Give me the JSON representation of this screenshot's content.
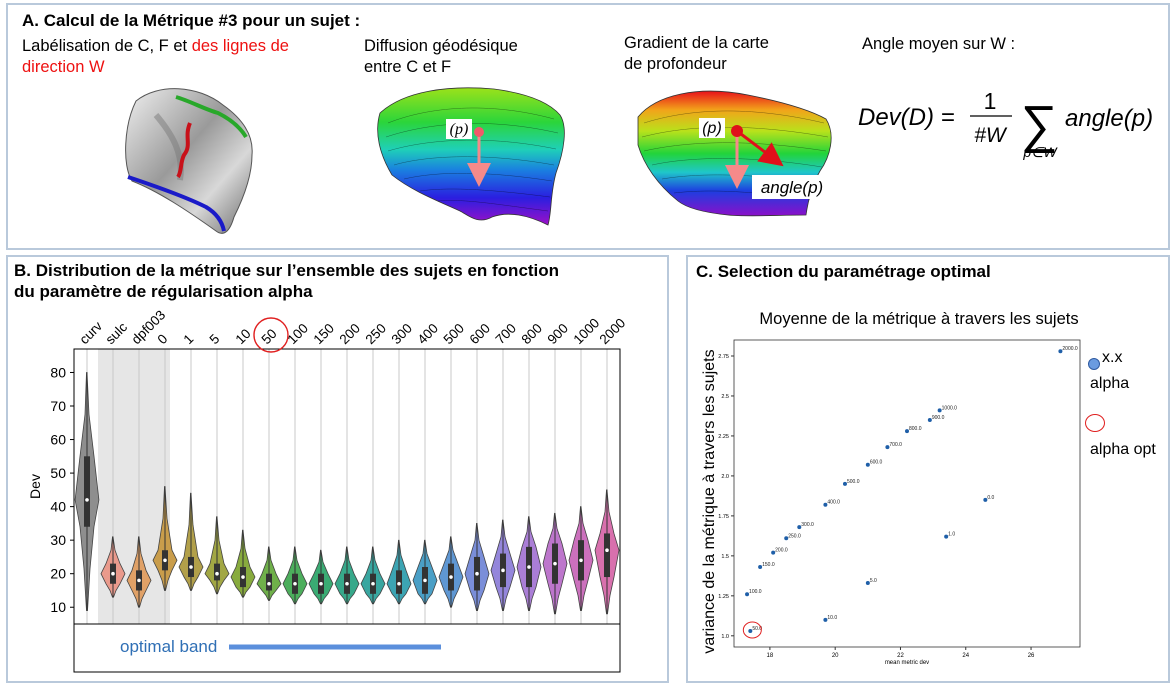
{
  "panelA": {
    "title": "A. Calcul de la Métrique #3 pour un sujet :",
    "step1": {
      "text": "Labélisation de C, F et ",
      "highlight": "des lignes de direction W"
    },
    "step2": {
      "line1": "Diffusion géodésique",
      "line2": "entre C et F"
    },
    "step3": {
      "line1": "Gradient de la carte",
      "line2": "de profondeur"
    },
    "step4": {
      "title": "Angle moyen sur W :"
    },
    "label_p": "(p)",
    "label_angle": "angle(p)",
    "formula": {
      "lhs": "Dev(D) =",
      "num": "1",
      "den": "#W",
      "sum": "∑",
      "sub": "p∈W",
      "term": "angle(p)"
    }
  },
  "panelB": {
    "title_line1": "B. Distribution de la métrique sur l’ensemble des sujets en fonction",
    "title_line2": "du paramètre de régularisation alpha",
    "optimal_label": "optimal band"
  },
  "panelC": {
    "title": "C. Selection du paramétrage optimal",
    "legend_marker": "x.x",
    "legend_alpha": "alpha",
    "legend_opt": "alpha opt"
  },
  "chart_data": [
    {
      "type": "violin",
      "ylabel": "Dev",
      "yticks": [
        10,
        20,
        30,
        40,
        50,
        60,
        70,
        80
      ],
      "ylim": [
        5,
        87
      ],
      "categories": [
        "curv",
        "sulc",
        "dpf003",
        "0",
        "1",
        "5",
        "10",
        "50",
        "100",
        "150",
        "200",
        "250",
        "300",
        "400",
        "500",
        "600",
        "700",
        "800",
        "900",
        "1000",
        "2000"
      ],
      "colors": [
        "#8e8e8e",
        "#e99a8c",
        "#e0a167",
        "#c99d4b",
        "#b2a04a",
        "#a2a744",
        "#88ab3e",
        "#6fb04a",
        "#4cae5c",
        "#3aab73",
        "#37a88a",
        "#39a6a0",
        "#3ca4b3",
        "#4a9fc6",
        "#5f97d3",
        "#7a8ed9",
        "#9486db",
        "#aa7ed6",
        "#bd76cc",
        "#cc70bd",
        "#d870ad"
      ],
      "min": [
        9,
        13,
        10,
        15,
        15,
        14,
        13,
        12,
        11,
        11,
        11,
        11,
        11,
        11,
        10,
        9,
        9,
        9,
        8,
        9,
        8
      ],
      "q1": [
        34,
        17,
        15,
        21,
        19,
        18,
        16,
        15,
        14,
        14,
        14,
        14,
        14,
        14,
        15,
        15,
        16,
        16,
        17,
        18,
        19
      ],
      "median": [
        42,
        20,
        18,
        24,
        22,
        20,
        19,
        17,
        17,
        17,
        17,
        17,
        17,
        18,
        19,
        20,
        21,
        22,
        23,
        24,
        27
      ],
      "q3": [
        55,
        23,
        21,
        27,
        25,
        23,
        22,
        20,
        20,
        20,
        20,
        20,
        21,
        22,
        23,
        25,
        26,
        28,
        29,
        30,
        32
      ],
      "max": [
        80,
        31,
        31,
        46,
        44,
        37,
        33,
        28,
        28,
        27,
        28,
        28,
        30,
        30,
        31,
        35,
        36,
        37,
        38,
        40,
        45
      ],
      "highlight_category": "50",
      "optimal_band": [
        "50",
        "500"
      ]
    },
    {
      "type": "scatter",
      "title": "Moyenne de la métrique à travers les sujets",
      "xlabel": "mean metric dev",
      "ylabel": "variance de la métrique à travers les sujets",
      "xticks": [
        18,
        20,
        22,
        24,
        26
      ],
      "yticks": [
        1.0,
        1.25,
        1.5,
        1.75,
        2.0,
        2.25,
        2.5,
        2.75
      ],
      "ytick_labels": [
        "1.0",
        "1.25",
        "1.5",
        "1.75",
        "2.0",
        "2.25",
        "2.5",
        "2.75"
      ],
      "xlim": [
        16.9,
        27.5
      ],
      "ylim": [
        0.93,
        2.85
      ],
      "points": [
        {
          "label": "2000.0",
          "x": 26.9,
          "y": 2.78
        },
        {
          "label": "1000.0",
          "x": 23.2,
          "y": 2.41
        },
        {
          "label": "900.0",
          "x": 22.9,
          "y": 2.35
        },
        {
          "label": "800.0",
          "x": 22.2,
          "y": 2.28
        },
        {
          "label": "700.0",
          "x": 21.6,
          "y": 2.18
        },
        {
          "label": "600.0",
          "x": 21.0,
          "y": 2.07
        },
        {
          "label": "500.0",
          "x": 20.3,
          "y": 1.95
        },
        {
          "label": "400.0",
          "x": 19.7,
          "y": 1.82
        },
        {
          "label": "300.0",
          "x": 18.9,
          "y": 1.68
        },
        {
          "label": "250.0",
          "x": 18.5,
          "y": 1.61
        },
        {
          "label": "200.0",
          "x": 18.1,
          "y": 1.52
        },
        {
          "label": "150.0",
          "x": 17.7,
          "y": 1.43
        },
        {
          "label": "100.0",
          "x": 17.3,
          "y": 1.26
        },
        {
          "label": "50.0",
          "x": 17.4,
          "y": 1.03
        },
        {
          "label": "10.0",
          "x": 19.7,
          "y": 1.1
        },
        {
          "label": "5.0",
          "x": 21.0,
          "y": 1.33
        },
        {
          "label": "1.0",
          "x": 23.4,
          "y": 1.62
        },
        {
          "label": "0.0",
          "x": 24.6,
          "y": 1.85
        }
      ],
      "highlight_label": "50.0"
    }
  ]
}
